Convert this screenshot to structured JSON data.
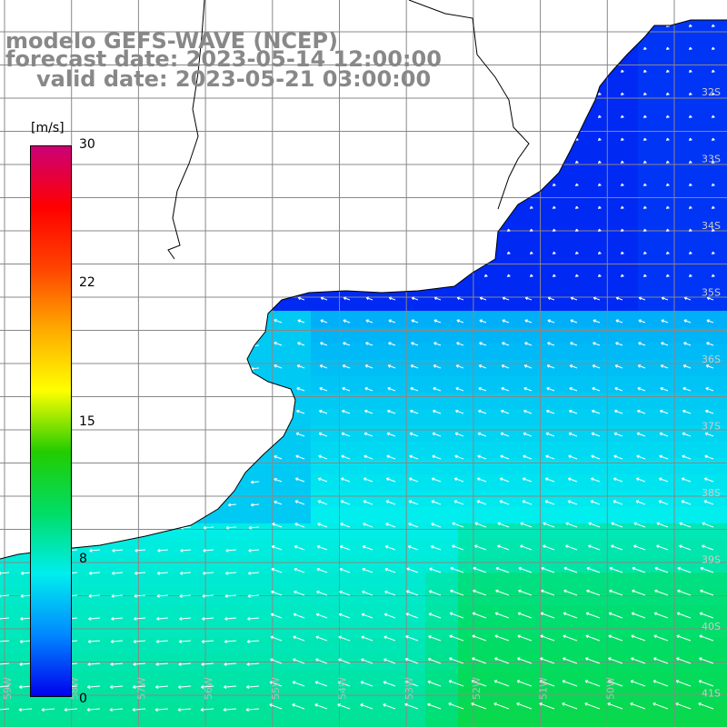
{
  "title": {
    "line1": "modelo GEFS-WAVE (NCEP)",
    "line2": "forecast date: 2023-05-14 12:00:00",
    "line3": "valid date: 2023-05-21 03:00:00"
  },
  "legend": {
    "unit": "[m/s]",
    "ticks": [
      "30",
      "22",
      "15",
      "8",
      "0"
    ],
    "tick_values": [
      30,
      22,
      15,
      8,
      0
    ],
    "range": [
      0,
      30
    ],
    "colors": [
      "#0000ee",
      "#0088ff",
      "#00eeee",
      "#00dd66",
      "#22cc00",
      "#ffff00",
      "#ffaa00",
      "#ff4400",
      "#ff0000",
      "#cc0077"
    ]
  },
  "map": {
    "lat_labels": [
      "32S",
      "33S",
      "34S",
      "35S",
      "36S",
      "37S",
      "38S",
      "39S",
      "40S",
      "41S"
    ],
    "lon_labels": [
      "59W",
      "58W",
      "57W",
      "56W",
      "55W",
      "54W",
      "53W",
      "52W",
      "51W",
      "50W"
    ],
    "grid_color": "#888888",
    "land_color": "#ffffff",
    "coast_color": "#000000",
    "arrow_color": "#ffffff"
  }
}
